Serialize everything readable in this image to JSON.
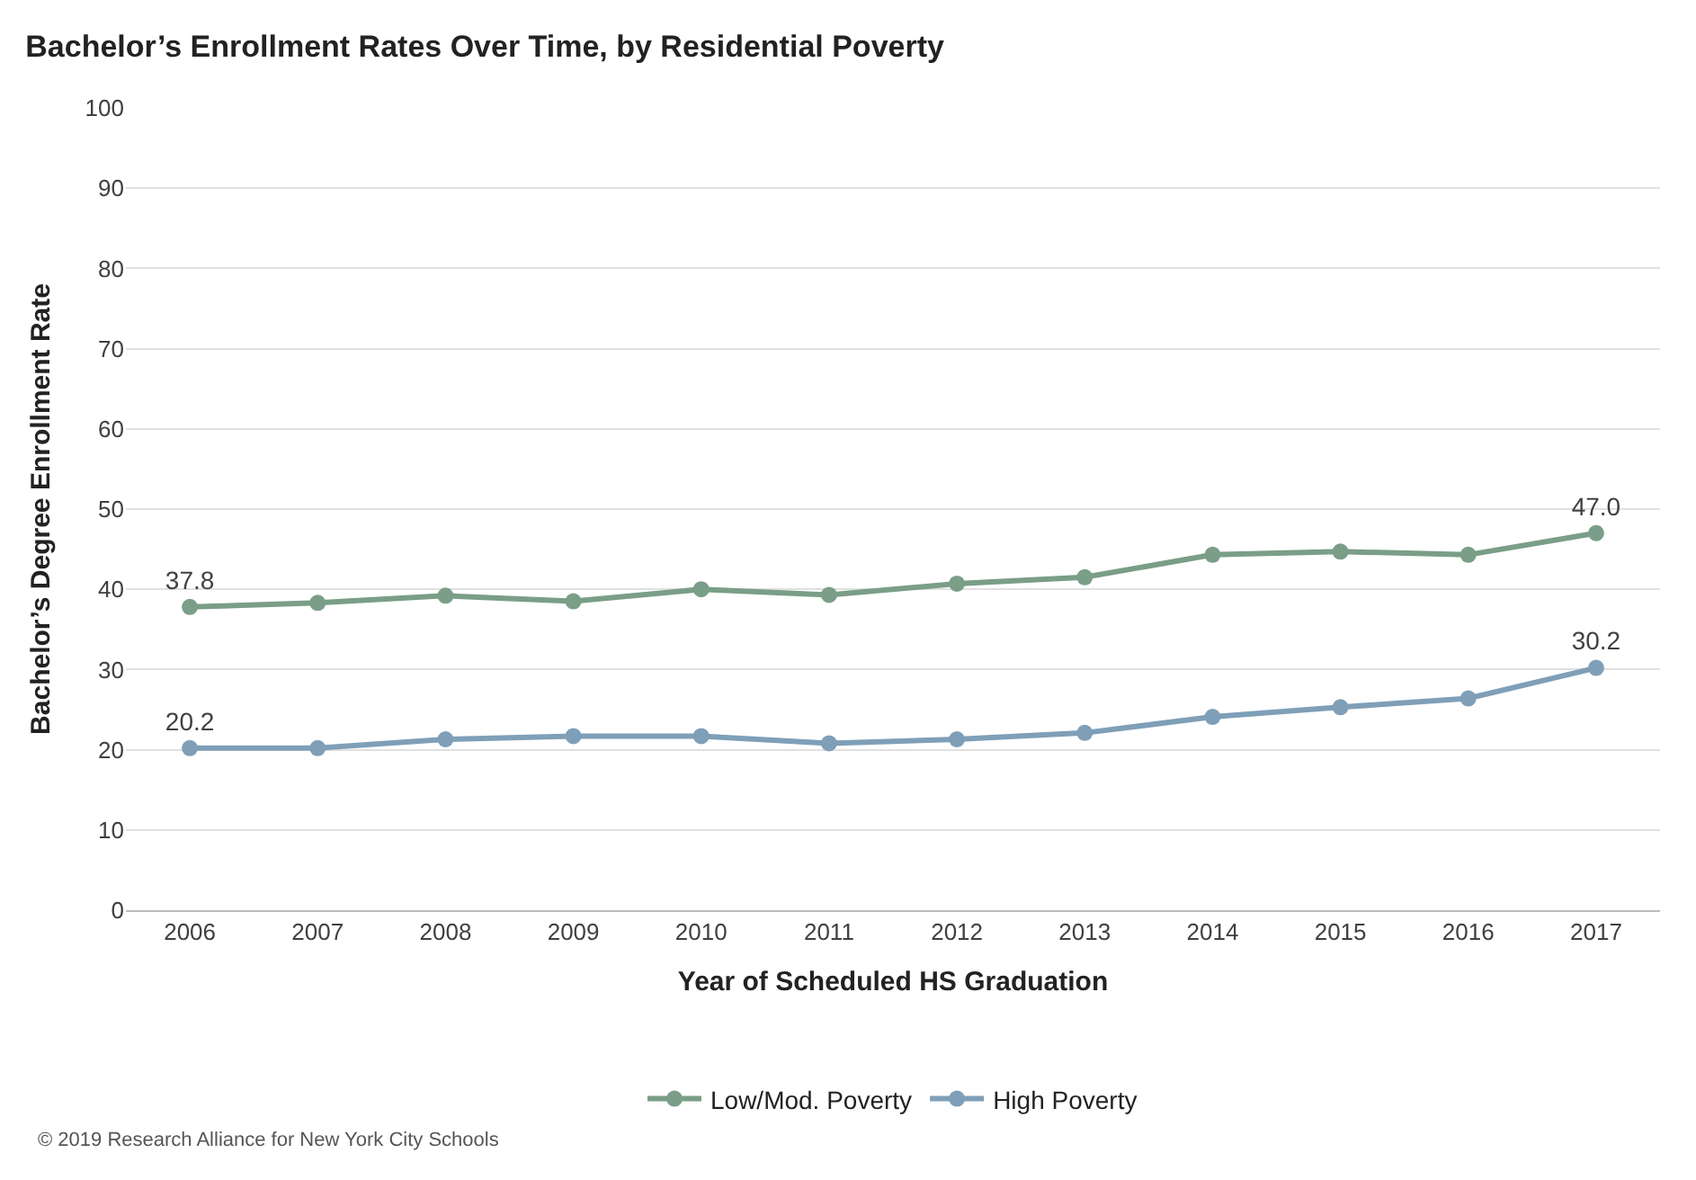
{
  "chart_data": {
    "type": "line",
    "title": "Bachelor’s Enrollment Rates Over Time, by Residential Poverty",
    "xlabel": "Year of Scheduled HS Graduation",
    "ylabel": "Bachelor’s Degree Enrollment Rate",
    "categories": [
      "2006",
      "2007",
      "2008",
      "2009",
      "2010",
      "2011",
      "2012",
      "2013",
      "2014",
      "2015",
      "2016",
      "2017"
    ],
    "series": [
      {
        "name": "Low/Mod. Poverty",
        "color": "#7a9e87",
        "values": [
          37.8,
          38.3,
          39.2,
          38.5,
          40.0,
          39.3,
          40.7,
          41.5,
          44.3,
          44.7,
          44.3,
          47.0
        ],
        "value_labels": [
          "37.8",
          null,
          null,
          null,
          null,
          null,
          null,
          null,
          null,
          null,
          null,
          "47.0"
        ]
      },
      {
        "name": "High Poverty",
        "color": "#7f9fb8",
        "values": [
          20.2,
          20.2,
          21.3,
          21.7,
          21.7,
          20.8,
          21.3,
          22.1,
          24.1,
          25.3,
          26.4,
          30.2
        ],
        "value_labels": [
          "20.2",
          null,
          null,
          null,
          null,
          null,
          null,
          null,
          null,
          null,
          null,
          "30.2"
        ]
      }
    ],
    "ylim": [
      0,
      100
    ],
    "yticks": [
      0,
      10,
      20,
      30,
      40,
      50,
      60,
      70,
      80,
      90,
      100
    ],
    "grid": "y",
    "legend": "bottom",
    "marker": "circle",
    "line_style": "solid",
    "annotations": [
      "© 2019 Research Alliance for New York City Schools"
    ]
  }
}
